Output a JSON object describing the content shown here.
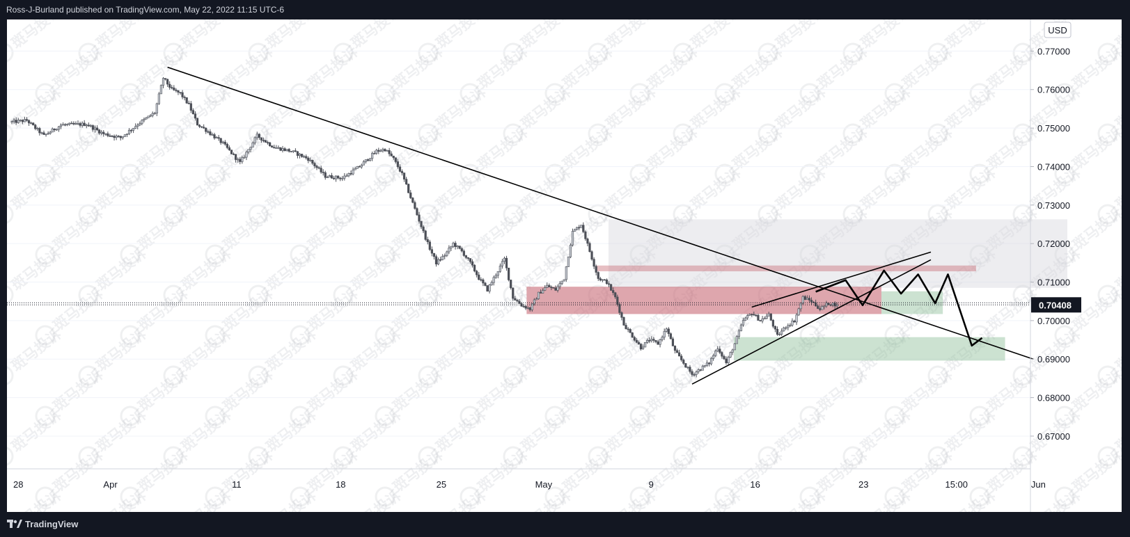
{
  "header": {
    "publisher_text": "Ross-J-Burland published on TradingView.com, May 22, 2022 11:15 UTC-6"
  },
  "footer": {
    "brand": "TradingView"
  },
  "watermark": {
    "text": "斑马投诉"
  },
  "colors": {
    "candle": "#4c4f57",
    "bullish_body": "#c8ccd3",
    "bearish_body": "#4c4f57",
    "supply_zone": "#c9707a",
    "demand_zone": "#8fbf98",
    "upper_zone": "#d6d8de",
    "price_label_bg": "#131722",
    "trendline": "#000000"
  },
  "chart_data": {
    "type": "candlestick",
    "instrument_currency": "USD",
    "last_price": 0.70408,
    "last_price_label": "0.70408",
    "y_range": [
      0.6615,
      0.7782
    ],
    "y_ticks": [
      "0.77000",
      "0.76000",
      "0.75000",
      "0.74000",
      "0.73000",
      "0.72000",
      "0.71000",
      "0.70000",
      "0.69000",
      "0.68000",
      "0.67000"
    ],
    "x_tick_labels": [
      "28",
      "Apr",
      "11",
      "18",
      "25",
      "May",
      "9",
      "16",
      "23",
      "15:00",
      "Jun"
    ],
    "close_path": [
      {
        "d": 0,
        "p": 0.7515
      },
      {
        "d": 2,
        "p": 0.752
      },
      {
        "d": 4,
        "p": 0.748
      },
      {
        "d": 6,
        "p": 0.7508
      },
      {
        "d": 9,
        "p": 0.751
      },
      {
        "d": 11,
        "p": 0.7485
      },
      {
        "d": 13,
        "p": 0.7475
      },
      {
        "d": 15,
        "p": 0.751
      },
      {
        "d": 17,
        "p": 0.754
      },
      {
        "d": 18,
        "p": 0.763
      },
      {
        "d": 19,
        "p": 0.76
      },
      {
        "d": 20,
        "p": 0.759
      },
      {
        "d": 21,
        "p": 0.756
      },
      {
        "d": 22,
        "p": 0.751
      },
      {
        "d": 23,
        "p": 0.7495
      },
      {
        "d": 25,
        "p": 0.746
      },
      {
        "d": 27,
        "p": 0.741
      },
      {
        "d": 29,
        "p": 0.748
      },
      {
        "d": 31,
        "p": 0.745
      },
      {
        "d": 33,
        "p": 0.744
      },
      {
        "d": 35,
        "p": 0.742
      },
      {
        "d": 37,
        "p": 0.7375
      },
      {
        "d": 39,
        "p": 0.737
      },
      {
        "d": 41,
        "p": 0.74
      },
      {
        "d": 43,
        "p": 0.744
      },
      {
        "d": 44,
        "p": 0.7445
      },
      {
        "d": 45,
        "p": 0.742
      },
      {
        "d": 46,
        "p": 0.738
      },
      {
        "d": 47,
        "p": 0.732
      },
      {
        "d": 48,
        "p": 0.726
      },
      {
        "d": 49,
        "p": 0.72
      },
      {
        "d": 50,
        "p": 0.715
      },
      {
        "d": 51,
        "p": 0.717
      },
      {
        "d": 52,
        "p": 0.72
      },
      {
        "d": 53,
        "p": 0.718
      },
      {
        "d": 54,
        "p": 0.715
      },
      {
        "d": 55,
        "p": 0.711
      },
      {
        "d": 56,
        "p": 0.708
      },
      {
        "d": 57,
        "p": 0.712
      },
      {
        "d": 58,
        "p": 0.716
      },
      {
        "d": 59,
        "p": 0.706
      },
      {
        "d": 60,
        "p": 0.704
      },
      {
        "d": 61,
        "p": 0.703
      },
      {
        "d": 62,
        "p": 0.707
      },
      {
        "d": 63,
        "p": 0.709
      },
      {
        "d": 64,
        "p": 0.708
      },
      {
        "d": 65,
        "p": 0.711
      },
      {
        "d": 66,
        "p": 0.723
      },
      {
        "d": 67,
        "p": 0.725
      },
      {
        "d": 68,
        "p": 0.718
      },
      {
        "d": 69,
        "p": 0.711
      },
      {
        "d": 70,
        "p": 0.71
      },
      {
        "d": 71,
        "p": 0.706
      },
      {
        "d": 72,
        "p": 0.699
      },
      {
        "d": 73,
        "p": 0.696
      },
      {
        "d": 74,
        "p": 0.693
      },
      {
        "d": 75,
        "p": 0.695
      },
      {
        "d": 76,
        "p": 0.694
      },
      {
        "d": 77,
        "p": 0.698
      },
      {
        "d": 78,
        "p": 0.692
      },
      {
        "d": 79,
        "p": 0.689
      },
      {
        "d": 80,
        "p": 0.686
      },
      {
        "d": 81,
        "p": 0.6875
      },
      {
        "d": 82,
        "p": 0.689
      },
      {
        "d": 83,
        "p": 0.693
      },
      {
        "d": 84,
        "p": 0.689
      },
      {
        "d": 85,
        "p": 0.694
      },
      {
        "d": 86,
        "p": 0.7
      },
      {
        "d": 87,
        "p": 0.702
      },
      {
        "d": 88,
        "p": 0.7
      },
      {
        "d": 89,
        "p": 0.7015
      },
      {
        "d": 90,
        "p": 0.696
      },
      {
        "d": 91,
        "p": 0.6985
      },
      {
        "d": 92,
        "p": 0.7
      },
      {
        "d": 93,
        "p": 0.706
      },
      {
        "d": 94,
        "p": 0.705
      },
      {
        "d": 95,
        "p": 0.703
      },
      {
        "d": 96,
        "p": 0.7045
      },
      {
        "d": 97,
        "p": 0.7041
      }
    ],
    "drawings": {
      "descending_trendline": [
        {
          "d": 18.5,
          "p": 0.7658
        },
        {
          "d": 120,
          "p": 0.69
        }
      ],
      "rising_support_line": [
        {
          "d": 80,
          "p": 0.6835
        },
        {
          "d": 108,
          "p": 0.7158
        }
      ],
      "channel_upper_line": [
        {
          "d": 87,
          "p": 0.7035
        },
        {
          "d": 108,
          "p": 0.7178
        }
      ],
      "projection_path": [
        {
          "d": 94.5,
          "p": 0.7075
        },
        {
          "d": 98,
          "p": 0.7105
        },
        {
          "d": 100,
          "p": 0.704
        },
        {
          "d": 102.5,
          "p": 0.713
        },
        {
          "d": 104.5,
          "p": 0.707
        },
        {
          "d": 106.5,
          "p": 0.712
        },
        {
          "d": 108.5,
          "p": 0.7045
        },
        {
          "d": 110,
          "p": 0.712
        },
        {
          "d": 112.8,
          "p": 0.6935
        },
        {
          "d": 114,
          "p": 0.6955
        }
      ],
      "zones": [
        {
          "name": "upper-supply-zone",
          "d1": 70.2,
          "d2": 124,
          "p1": 0.7085,
          "p2": 0.7263
        },
        {
          "name": "thin-supply-zone",
          "d1": 68.7,
          "d2": 113.3,
          "p1": 0.7128,
          "p2": 0.7143
        },
        {
          "name": "main-supply-zone",
          "d1": 60.6,
          "d2": 102.2,
          "p1": 0.7017,
          "p2": 0.7088
        },
        {
          "name": "demand-zone-right",
          "d1": 102.2,
          "d2": 109.4,
          "p1": 0.7017,
          "p2": 0.7076
        },
        {
          "name": "lower-demand-zone",
          "d1": 84.9,
          "d2": 116.7,
          "p1": 0.6896,
          "p2": 0.6957
        }
      ]
    }
  }
}
